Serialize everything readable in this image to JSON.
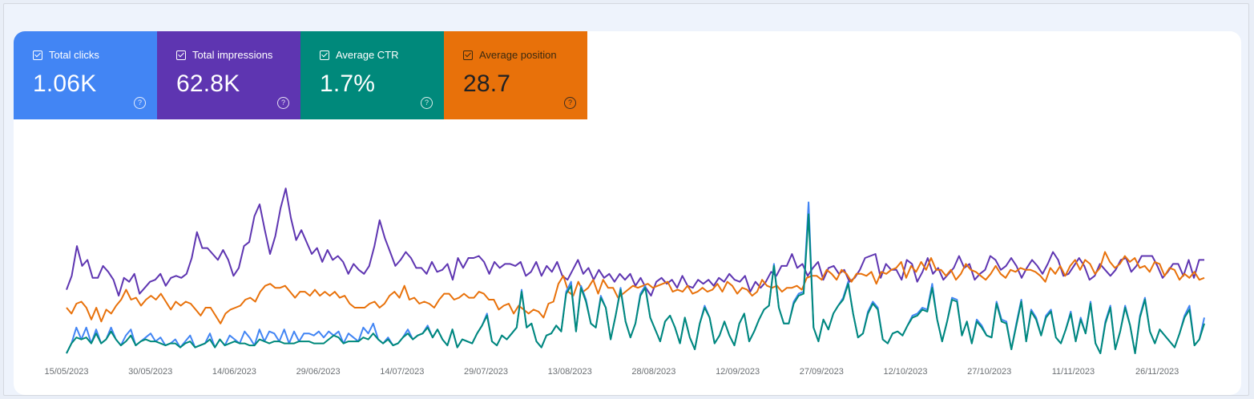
{
  "metrics": [
    {
      "label": "Total clicks",
      "value": "1.06K",
      "color": "#4285f4"
    },
    {
      "label": "Total impressions",
      "value": "62.8K",
      "color": "#5e35b1"
    },
    {
      "label": "Average CTR",
      "value": "1.7%",
      "color": "#00897b"
    },
    {
      "label": "Average position",
      "value": "28.7",
      "color": "#e8710a"
    }
  ],
  "help_icon_glyph": "?",
  "chart_data": {
    "type": "line",
    "x_tick_labels": [
      "15/05/2023",
      "30/05/2023",
      "14/06/2023",
      "29/06/2023",
      "14/07/2023",
      "29/07/2023",
      "13/08/2023",
      "28/08/2023",
      "12/09/2023",
      "27/09/2023",
      "12/10/2023",
      "27/10/2023",
      "11/11/2023",
      "26/11/2023"
    ],
    "x_range": [
      "15/05/2023",
      "06/12/2023"
    ],
    "grid": false,
    "legend": "none",
    "series": [
      {
        "metric": "Total impressions",
        "color": "#5e35b1",
        "values_scaled": [
          0.32,
          0.39,
          0.54,
          0.44,
          0.47,
          0.38,
          0.38,
          0.44,
          0.41,
          0.37,
          0.29,
          0.38,
          0.36,
          0.4,
          0.3,
          0.33,
          0.36,
          0.37,
          0.4,
          0.34,
          0.38,
          0.39,
          0.38,
          0.4,
          0.48,
          0.61,
          0.53,
          0.53,
          0.5,
          0.47,
          0.52,
          0.47,
          0.39,
          0.43,
          0.54,
          0.56,
          0.69,
          0.75,
          0.62,
          0.5,
          0.59,
          0.73,
          0.83,
          0.68,
          0.57,
          0.62,
          0.56,
          0.5,
          0.53,
          0.46,
          0.52,
          0.47,
          0.49,
          0.46,
          0.4,
          0.45,
          0.42,
          0.4,
          0.44,
          0.54,
          0.67,
          0.58,
          0.51,
          0.44,
          0.47,
          0.51,
          0.48,
          0.43,
          0.43,
          0.4,
          0.46,
          0.41,
          0.42,
          0.45,
          0.37,
          0.48,
          0.43,
          0.48,
          0.48,
          0.49,
          0.46,
          0.4,
          0.46,
          0.43,
          0.45,
          0.45,
          0.44,
          0.46,
          0.39,
          0.41,
          0.46,
          0.39,
          0.44,
          0.41,
          0.46,
          0.39,
          0.37,
          0.42,
          0.47,
          0.4,
          0.43,
          0.37,
          0.42,
          0.38,
          0.4,
          0.36,
          0.4,
          0.37,
          0.4,
          0.34,
          0.38,
          0.33,
          0.29,
          0.36,
          0.38,
          0.35,
          0.37,
          0.33,
          0.39,
          0.34,
          0.33,
          0.37,
          0.35,
          0.37,
          0.34,
          0.38,
          0.36,
          0.4,
          0.37,
          0.36,
          0.39,
          0.31,
          0.36,
          0.33,
          0.36,
          0.41,
          0.39,
          0.44,
          0.44,
          0.5,
          0.43,
          0.45,
          0.39,
          0.43,
          0.46,
          0.37,
          0.43,
          0.44,
          0.4,
          0.42,
          0.36,
          0.38,
          0.42,
          0.48,
          0.49,
          0.5,
          0.38,
          0.45,
          0.42,
          0.42,
          0.37,
          0.47,
          0.45,
          0.36,
          0.41,
          0.48,
          0.4,
          0.43,
          0.37,
          0.4,
          0.43,
          0.49,
          0.43,
          0.45,
          0.37,
          0.4,
          0.42,
          0.49,
          0.47,
          0.42,
          0.44,
          0.48,
          0.44,
          0.38,
          0.43,
          0.47,
          0.44,
          0.4,
          0.45,
          0.51,
          0.47,
          0.39,
          0.4,
          0.44,
          0.48,
          0.44,
          0.37,
          0.39,
          0.45,
          0.42,
          0.39,
          0.42,
          0.47,
          0.48,
          0.41,
          0.44,
          0.49,
          0.49,
          0.49,
          0.44,
          0.38,
          0.41,
          0.45,
          0.45,
          0.39,
          0.47,
          0.38,
          0.47,
          0.47
        ]
      },
      {
        "metric": "Average position",
        "color": "#e8710a",
        "values_scaled": [
          0.23,
          0.2,
          0.25,
          0.26,
          0.23,
          0.17,
          0.23,
          0.16,
          0.22,
          0.2,
          0.24,
          0.27,
          0.32,
          0.27,
          0.28,
          0.24,
          0.27,
          0.29,
          0.27,
          0.3,
          0.26,
          0.22,
          0.26,
          0.24,
          0.26,
          0.25,
          0.22,
          0.19,
          0.23,
          0.23,
          0.19,
          0.15,
          0.2,
          0.22,
          0.23,
          0.24,
          0.27,
          0.28,
          0.26,
          0.31,
          0.34,
          0.35,
          0.33,
          0.33,
          0.34,
          0.31,
          0.28,
          0.31,
          0.31,
          0.29,
          0.32,
          0.29,
          0.31,
          0.29,
          0.31,
          0.28,
          0.29,
          0.25,
          0.23,
          0.23,
          0.23,
          0.25,
          0.26,
          0.23,
          0.25,
          0.29,
          0.31,
          0.28,
          0.34,
          0.27,
          0.28,
          0.25,
          0.26,
          0.25,
          0.23,
          0.27,
          0.3,
          0.3,
          0.27,
          0.28,
          0.3,
          0.28,
          0.28,
          0.31,
          0.3,
          0.27,
          0.27,
          0.22,
          0.24,
          0.25,
          0.2,
          0.24,
          0.22,
          0.2,
          0.22,
          0.21,
          0.18,
          0.25,
          0.26,
          0.35,
          0.39,
          0.31,
          0.29,
          0.36,
          0.31,
          0.33,
          0.37,
          0.3,
          0.37,
          0.33,
          0.33,
          0.28,
          0.3,
          0.32,
          0.34,
          0.33,
          0.34,
          0.35,
          0.33,
          0.34,
          0.35,
          0.36,
          0.31,
          0.32,
          0.31,
          0.34,
          0.3,
          0.31,
          0.33,
          0.31,
          0.32,
          0.35,
          0.31,
          0.36,
          0.34,
          0.3,
          0.33,
          0.32,
          0.29,
          0.31,
          0.37,
          0.34,
          0.33,
          0.34,
          0.31,
          0.33,
          0.33,
          0.34,
          0.32,
          0.38,
          0.39,
          0.39,
          0.37,
          0.42,
          0.4,
          0.37,
          0.42,
          0.4,
          0.36,
          0.4,
          0.4,
          0.39,
          0.41,
          0.35,
          0.41,
          0.4,
          0.42,
          0.43,
          0.46,
          0.38,
          0.44,
          0.41,
          0.46,
          0.42,
          0.48,
          0.42,
          0.42,
          0.39,
          0.42,
          0.37,
          0.4,
          0.45,
          0.42,
          0.41,
          0.39,
          0.37,
          0.4,
          0.44,
          0.4,
          0.38,
          0.42,
          0.41,
          0.43,
          0.42,
          0.42,
          0.41,
          0.39,
          0.36,
          0.43,
          0.4,
          0.44,
          0.39,
          0.44,
          0.47,
          0.42,
          0.47,
          0.45,
          0.4,
          0.43,
          0.51,
          0.46,
          0.43,
          0.45,
          0.49,
          0.46,
          0.48,
          0.43,
          0.44,
          0.41,
          0.46,
          0.45,
          0.39,
          0.43,
          0.42,
          0.37,
          0.4,
          0.38,
          0.41,
          0.37,
          0.38
        ]
      },
      {
        "metric": "Total clicks",
        "color": "#4285f4",
        "values_scaled": [
          0.0,
          0.05,
          0.13,
          0.07,
          0.13,
          0.05,
          0.12,
          0.05,
          0.07,
          0.13,
          0.07,
          0.04,
          0.09,
          0.12,
          0.04,
          0.06,
          0.08,
          0.1,
          0.06,
          0.08,
          0.04,
          0.05,
          0.07,
          0.03,
          0.06,
          0.09,
          0.03,
          0.04,
          0.05,
          0.1,
          0.03,
          0.07,
          0.04,
          0.09,
          0.07,
          0.05,
          0.11,
          0.08,
          0.04,
          0.12,
          0.06,
          0.11,
          0.1,
          0.06,
          0.12,
          0.05,
          0.11,
          0.06,
          0.1,
          0.1,
          0.09,
          0.11,
          0.08,
          0.11,
          0.09,
          0.11,
          0.05,
          0.1,
          0.08,
          0.06,
          0.13,
          0.1,
          0.15,
          0.07,
          0.05,
          0.08,
          0.04,
          0.05,
          0.08,
          0.12,
          0.07,
          0.09,
          0.1,
          0.14,
          0.08,
          0.12,
          0.07,
          0.04,
          0.12,
          0.03,
          0.07,
          0.06,
          0.05,
          0.1,
          0.14,
          0.2,
          0.06,
          0.04,
          0.09,
          0.07,
          0.1,
          0.13,
          0.32,
          0.13,
          0.15,
          0.06,
          0.03,
          0.09,
          0.1,
          0.14,
          0.11,
          0.31,
          0.36,
          0.11,
          0.34,
          0.27,
          0.15,
          0.13,
          0.29,
          0.23,
          0.07,
          0.19,
          0.33,
          0.16,
          0.08,
          0.15,
          0.3,
          0.34,
          0.18,
          0.12,
          0.06,
          0.16,
          0.19,
          0.13,
          0.05,
          0.18,
          0.08,
          0.02,
          0.15,
          0.24,
          0.18,
          0.05,
          0.09,
          0.16,
          0.09,
          0.04,
          0.15,
          0.2,
          0.06,
          0.11,
          0.17,
          0.22,
          0.24,
          0.45,
          0.23,
          0.15,
          0.15,
          0.26,
          0.3,
          0.31,
          0.76,
          0.13,
          0.06,
          0.17,
          0.12,
          0.2,
          0.24,
          0.28,
          0.36,
          0.2,
          0.08,
          0.1,
          0.21,
          0.26,
          0.23,
          0.07,
          0.05,
          0.1,
          0.11,
          0.09,
          0.14,
          0.19,
          0.2,
          0.23,
          0.22,
          0.35,
          0.17,
          0.06,
          0.16,
          0.28,
          0.27,
          0.09,
          0.16,
          0.05,
          0.17,
          0.14,
          0.09,
          0.08,
          0.26,
          0.17,
          0.16,
          0.02,
          0.15,
          0.27,
          0.06,
          0.22,
          0.18,
          0.09,
          0.19,
          0.22,
          0.08,
          0.05,
          0.12,
          0.21,
          0.06,
          0.18,
          0.1,
          0.26,
          0.05,
          0.0,
          0.16,
          0.24,
          0.02,
          0.11,
          0.24,
          0.14,
          0.0,
          0.19,
          0.28,
          0.11,
          0.05,
          0.12,
          0.09,
          0.06,
          0.03,
          0.1,
          0.19,
          0.24,
          0.04,
          0.07,
          0.18
        ]
      },
      {
        "metric": "Average CTR",
        "color": "#00897b",
        "values_scaled": [
          0.0,
          0.05,
          0.08,
          0.07,
          0.08,
          0.05,
          0.1,
          0.05,
          0.07,
          0.11,
          0.07,
          0.04,
          0.06,
          0.09,
          0.04,
          0.06,
          0.07,
          0.06,
          0.06,
          0.05,
          0.04,
          0.05,
          0.05,
          0.03,
          0.05,
          0.06,
          0.03,
          0.04,
          0.05,
          0.07,
          0.03,
          0.07,
          0.04,
          0.05,
          0.06,
          0.05,
          0.05,
          0.04,
          0.04,
          0.07,
          0.06,
          0.05,
          0.06,
          0.06,
          0.05,
          0.05,
          0.05,
          0.06,
          0.06,
          0.06,
          0.05,
          0.05,
          0.05,
          0.07,
          0.09,
          0.08,
          0.05,
          0.06,
          0.06,
          0.06,
          0.08,
          0.07,
          0.1,
          0.07,
          0.05,
          0.07,
          0.04,
          0.05,
          0.08,
          0.1,
          0.07,
          0.09,
          0.1,
          0.13,
          0.08,
          0.12,
          0.07,
          0.04,
          0.12,
          0.03,
          0.07,
          0.06,
          0.05,
          0.1,
          0.14,
          0.19,
          0.06,
          0.04,
          0.09,
          0.07,
          0.1,
          0.13,
          0.31,
          0.13,
          0.15,
          0.06,
          0.03,
          0.09,
          0.1,
          0.14,
          0.11,
          0.3,
          0.34,
          0.11,
          0.33,
          0.26,
          0.15,
          0.13,
          0.28,
          0.23,
          0.07,
          0.19,
          0.32,
          0.16,
          0.08,
          0.15,
          0.29,
          0.33,
          0.18,
          0.12,
          0.06,
          0.16,
          0.19,
          0.13,
          0.05,
          0.18,
          0.08,
          0.02,
          0.15,
          0.23,
          0.18,
          0.05,
          0.09,
          0.16,
          0.09,
          0.04,
          0.15,
          0.2,
          0.06,
          0.11,
          0.17,
          0.22,
          0.24,
          0.44,
          0.23,
          0.15,
          0.15,
          0.25,
          0.29,
          0.3,
          0.7,
          0.13,
          0.06,
          0.17,
          0.12,
          0.2,
          0.24,
          0.27,
          0.35,
          0.2,
          0.08,
          0.1,
          0.2,
          0.25,
          0.22,
          0.07,
          0.05,
          0.1,
          0.11,
          0.09,
          0.14,
          0.18,
          0.19,
          0.22,
          0.21,
          0.33,
          0.17,
          0.06,
          0.16,
          0.27,
          0.26,
          0.09,
          0.16,
          0.05,
          0.16,
          0.13,
          0.09,
          0.08,
          0.25,
          0.16,
          0.15,
          0.02,
          0.14,
          0.26,
          0.06,
          0.21,
          0.17,
          0.09,
          0.18,
          0.21,
          0.08,
          0.05,
          0.12,
          0.2,
          0.06,
          0.17,
          0.1,
          0.25,
          0.05,
          0.0,
          0.15,
          0.23,
          0.02,
          0.11,
          0.23,
          0.14,
          0.0,
          0.18,
          0.27,
          0.11,
          0.05,
          0.12,
          0.09,
          0.06,
          0.03,
          0.1,
          0.18,
          0.22,
          0.04,
          0.07,
          0.15
        ]
      }
    ]
  }
}
